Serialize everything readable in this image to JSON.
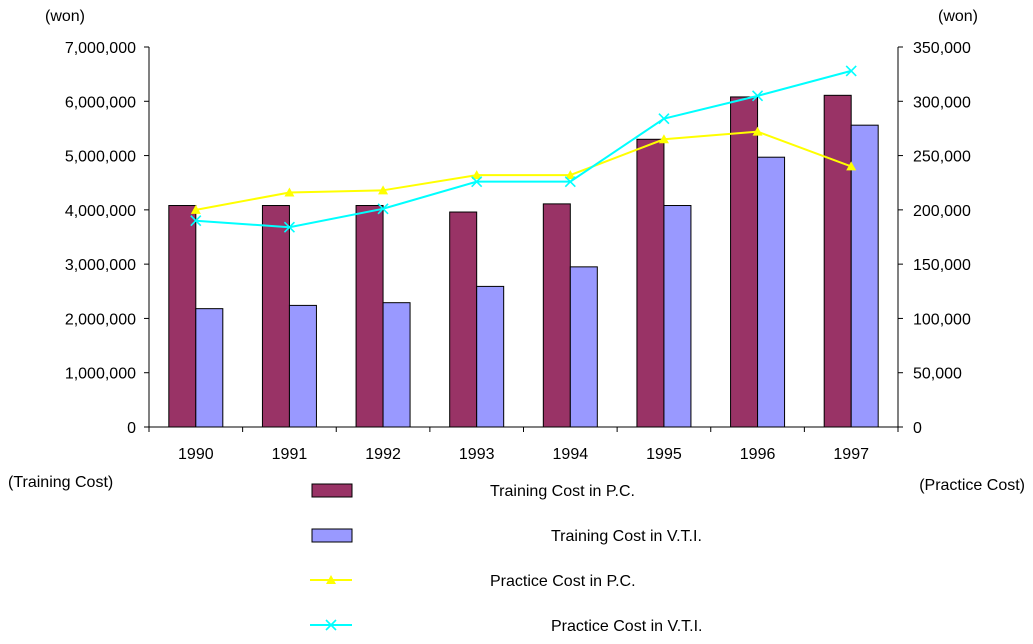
{
  "chart_data": {
    "type": "bar",
    "categories": [
      "1990",
      "1991",
      "1992",
      "1993",
      "1994",
      "1995",
      "1996",
      "1997"
    ],
    "left_axis": {
      "unit": "(won)",
      "label": "(Training Cost)",
      "ylim": [
        0,
        7000000
      ],
      "ticks": [
        "0",
        "1,000,000",
        "2,000,000",
        "3,000,000",
        "4,000,000",
        "5,000,000",
        "6,000,000",
        "7,000,000"
      ]
    },
    "right_axis": {
      "unit": "(won)",
      "label": "(Practice Cost)",
      "ylim": [
        0,
        350000
      ],
      "ticks": [
        "0",
        "50,000",
        "100,000",
        "150,000",
        "200,000",
        "250,000",
        "300,000",
        "350,000"
      ]
    },
    "series": [
      {
        "name": "Training Cost in P.C.",
        "kind": "bar",
        "axis": "left",
        "color": "#993366",
        "values": [
          4080000,
          4080000,
          4080000,
          3960000,
          4110000,
          5300000,
          6080000,
          6110000
        ]
      },
      {
        "name": "Training Cost in V.T.I.",
        "kind": "bar",
        "axis": "left",
        "color": "#9999ff",
        "values": [
          2180000,
          2240000,
          2290000,
          2590000,
          2950000,
          4080000,
          4970000,
          5560000
        ]
      },
      {
        "name": "Practice Cost in P.C.",
        "kind": "line",
        "marker": "triangle",
        "axis": "right",
        "color": "#ffff00",
        "values": [
          200000,
          216000,
          218000,
          232000,
          232000,
          265000,
          272000,
          240000
        ]
      },
      {
        "name": "Practice Cost in V.T.I.",
        "kind": "line",
        "marker": "x",
        "axis": "right",
        "color": "#00ffff",
        "values": [
          190000,
          184000,
          201000,
          226000,
          226000,
          284000,
          305000,
          328000
        ]
      }
    ],
    "grid": false,
    "legend_position": "bottom"
  }
}
